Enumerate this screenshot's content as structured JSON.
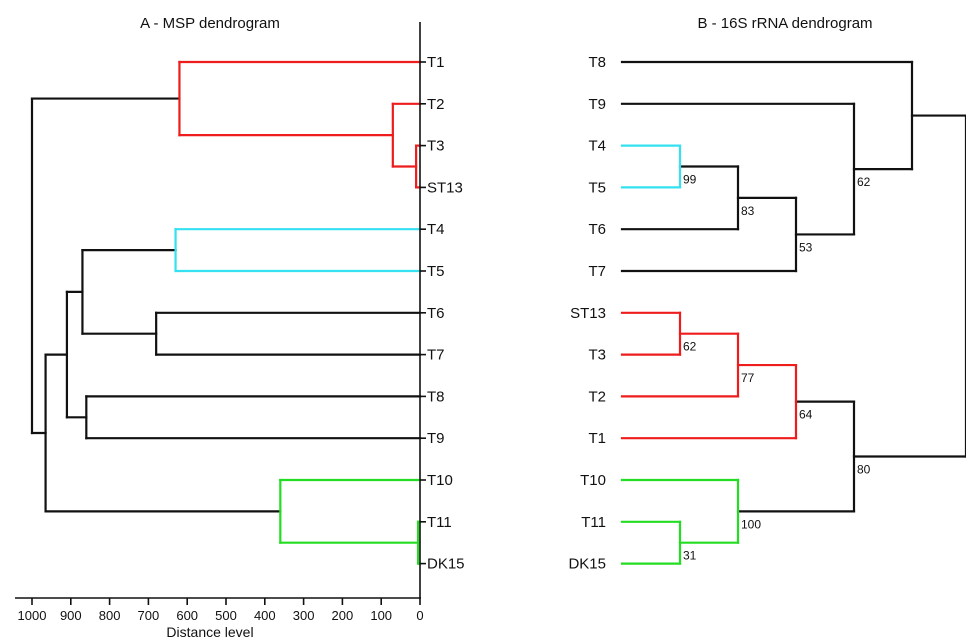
{
  "panel_a": {
    "title": "A - MSP dendrogram",
    "axis_label": "Distance level",
    "axis_ticks": [
      1000,
      900,
      800,
      700,
      600,
      500,
      400,
      300,
      200,
      100,
      0
    ],
    "leaves": [
      "T1",
      "T2",
      "T3",
      "ST13",
      "T4",
      "T5",
      "T6",
      "T7",
      "T8",
      "T9",
      "T10",
      "T11",
      "DK15"
    ],
    "clusters": [
      {
        "members": [
          "T1",
          "T2",
          "T3",
          "ST13"
        ],
        "color": "#ee1c1c"
      },
      {
        "members": [
          "T4",
          "T5"
        ],
        "color": "#33e1f0"
      },
      {
        "members": [
          "T10",
          "T11",
          "DK15"
        ],
        "color": "#22dd22"
      }
    ],
    "default_color": "#111111"
  },
  "panel_b": {
    "title": "B - 16S rRNA dendrogram",
    "leaves": [
      "T8",
      "T9",
      "T4",
      "T5",
      "T6",
      "T7",
      "ST13",
      "T3",
      "T2",
      "T1",
      "T10",
      "T11",
      "DK15"
    ],
    "bootstrap_values": [
      "99",
      "83",
      "62",
      "53",
      "62",
      "77",
      "64",
      "80",
      "100",
      "31"
    ],
    "clusters": [
      {
        "members": [
          "T4",
          "T5"
        ],
        "color": "#33e1f0"
      },
      {
        "members": [
          "ST13",
          "T3",
          "T2",
          "T1"
        ],
        "color": "#ee1c1c"
      },
      {
        "members": [
          "T10",
          "T11",
          "DK15"
        ],
        "color": "#22dd22"
      }
    ],
    "default_color": "#111111"
  }
}
